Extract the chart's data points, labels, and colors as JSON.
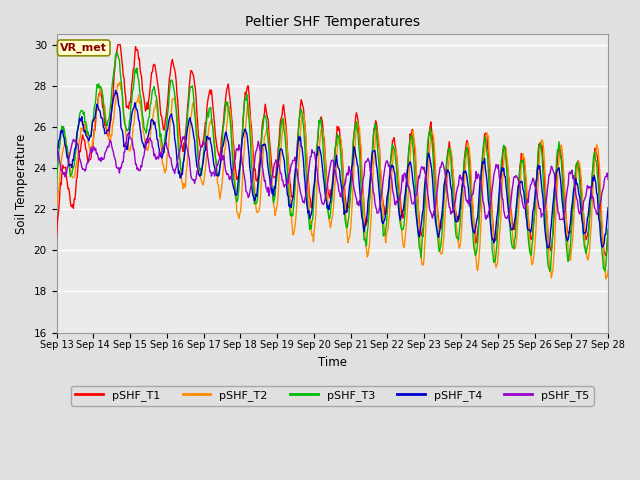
{
  "title": "Peltier SHF Temperatures",
  "ylabel": "Soil Temperature",
  "xlabel": "Time",
  "annotation_text": "VR_met",
  "annotation_color": "#8B0000",
  "annotation_bg": "#FFFFCC",
  "annotation_border": "#8B8B00",
  "ylim": [
    16,
    30.5
  ],
  "yticks": [
    16,
    18,
    20,
    22,
    24,
    26,
    28,
    30
  ],
  "bg_color": "#E0E0E0",
  "plot_bg": "#EBEBEB",
  "grid_color": "#FFFFFF",
  "series": [
    "pSHF_T1",
    "pSHF_T2",
    "pSHF_T3",
    "pSHF_T4",
    "pSHF_T5"
  ],
  "colors": [
    "#FF0000",
    "#FF8C00",
    "#00BB00",
    "#0000CC",
    "#9900CC"
  ],
  "linewidth": 1.0,
  "x_start": 13,
  "x_end": 28,
  "xtick_labels": [
    "Sep 13",
    "Sep 14",
    "Sep 15",
    "Sep 16",
    "Sep 17",
    "Sep 18",
    "Sep 19",
    "Sep 20",
    "Sep 21",
    "Sep 22",
    "Sep 23",
    "Sep 24",
    "Sep 25",
    "Sep 26",
    "Sep 27",
    "Sep 28"
  ],
  "xtick_positions": [
    13,
    14,
    15,
    16,
    17,
    18,
    19,
    20,
    21,
    22,
    23,
    24,
    25,
    26,
    27,
    28
  ],
  "figsize": [
    6.4,
    4.8
  ],
  "dpi": 100
}
